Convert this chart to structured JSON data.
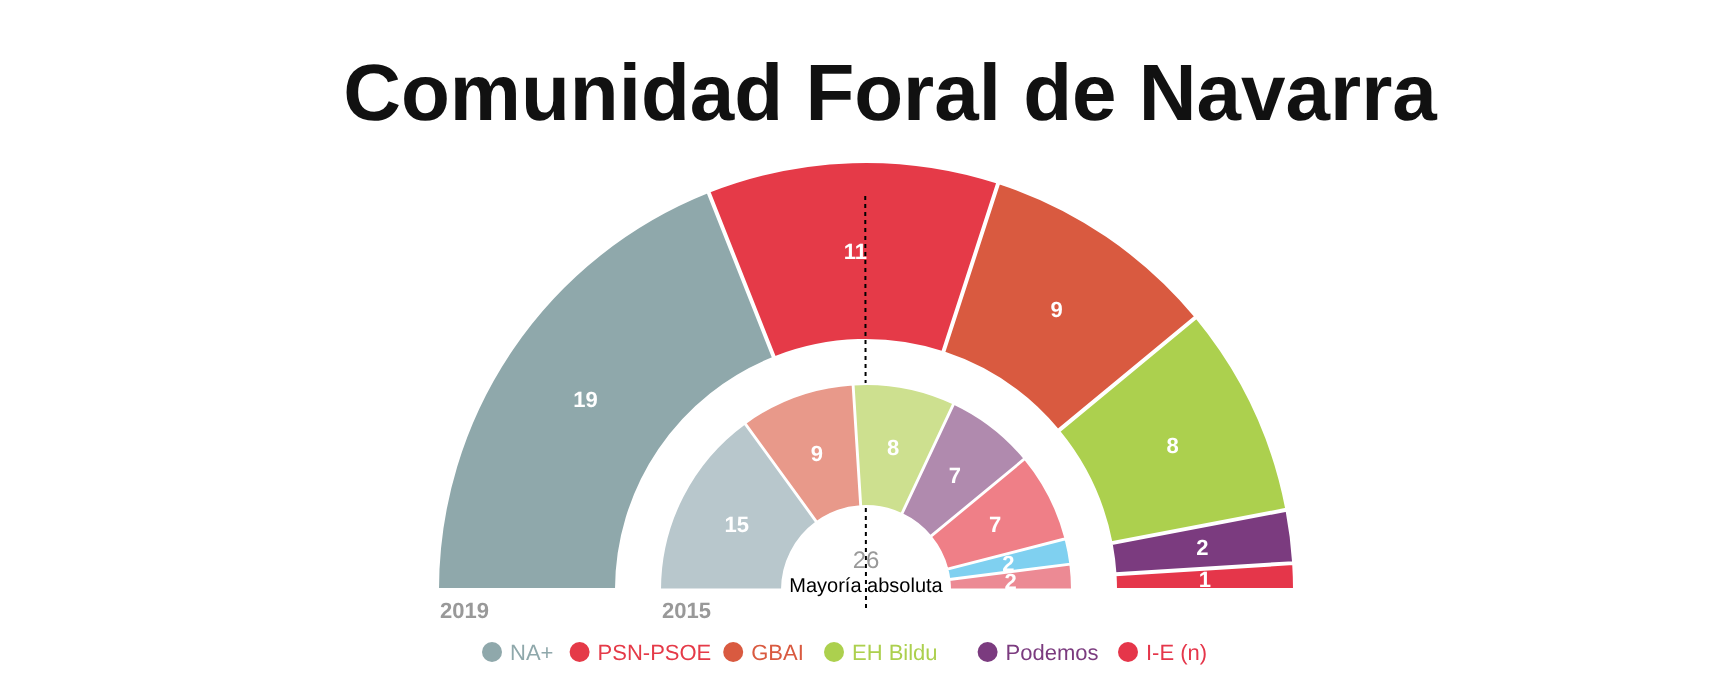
{
  "chart_data": [
    {
      "type": "donut",
      "title": "Comunidad Foral de Navarra",
      "xlabel": "2019",
      "categories": [
        "NA+",
        "PSN-PSOE",
        "GBAI",
        "EH Bildu",
        "Podemos",
        "I-E (n)"
      ],
      "values": [
        19,
        11,
        9,
        8,
        2,
        1
      ],
      "colors": [
        "#8fa8ab",
        "#e53a48",
        "#d95a40",
        "#acd04e",
        "#7b3b7f",
        "#e5364a"
      ],
      "data_labels": true,
      "legend": "bottom",
      "needle": "PSN-PSOE",
      "annotations": [
        "26",
        "Mayoría absoluta"
      ]
    },
    {
      "type": "donut",
      "xlabel": "2015",
      "categories": [
        null,
        null,
        null,
        null,
        null,
        null,
        null
      ],
      "values": [
        15,
        9,
        8,
        7,
        7,
        2,
        2
      ],
      "colors": [
        "#b8c7cc",
        "#e8998a",
        "#cde08f",
        "#b08aae",
        "#ef7f87",
        "#7fd0f0",
        "#ec8a94"
      ],
      "data_labels": true
    }
  ]
}
